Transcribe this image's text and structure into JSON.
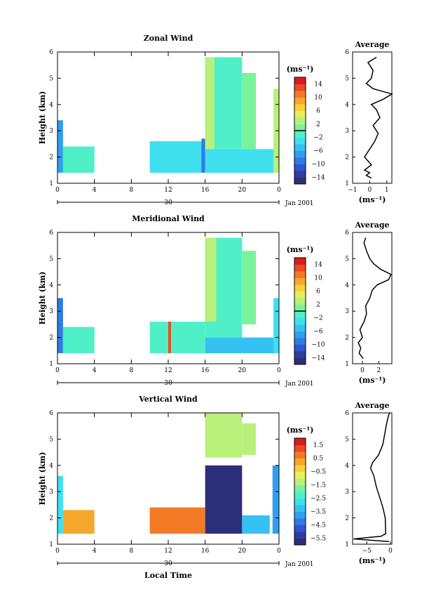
{
  "chart_data": [
    {
      "type": "heatmap",
      "title": "Zonal Wind",
      "ylabel": "Height (km)",
      "xlabel": "",
      "ylim": [
        1,
        6
      ],
      "yticks": [
        "1",
        "2",
        "3",
        "4",
        "5",
        "6"
      ],
      "xticks": [
        "0",
        "4",
        "8",
        "12",
        "16",
        "20",
        "0"
      ],
      "date_day": "30",
      "date_label": "Jan 2001",
      "colorbar": {
        "unit": "(ms⁻¹)",
        "range": [
          -16,
          16
        ],
        "ticks": [
          14,
          10,
          6,
          2,
          -2,
          -6,
          -10,
          -14
        ],
        "tick_labels": [
          "14",
          "10",
          "6",
          "2",
          "−2",
          "−6",
          "−10",
          "−14"
        ],
        "zero_line": 0
      },
      "data_blocks": [
        {
          "t": [
            0,
            0.6
          ],
          "h": [
            1.4,
            3.4
          ],
          "v": -7
        },
        {
          "t": [
            0.6,
            4
          ],
          "h": [
            1.4,
            2.4
          ],
          "v": -2
        },
        {
          "t": [
            10,
            16
          ],
          "h": [
            1.4,
            2.6
          ],
          "v": -3
        },
        {
          "t": [
            15.6,
            16
          ],
          "h": [
            1.4,
            2.7
          ],
          "v": -9
        },
        {
          "t": [
            16,
            24
          ],
          "h": [
            1.4,
            2.3
          ],
          "v": -4
        },
        {
          "t": [
            16,
            20
          ],
          "h": [
            2.3,
            5.8
          ],
          "v": -1
        },
        {
          "t": [
            16,
            17
          ],
          "h": [
            2.3,
            5.8
          ],
          "v": 2
        },
        {
          "t": [
            20,
            21.5
          ],
          "h": [
            2.3,
            5.2
          ],
          "v": 1
        },
        {
          "t": [
            23.4,
            24
          ],
          "h": [
            1.4,
            4.6
          ],
          "v": 2
        }
      ],
      "profile": {
        "title": "Average",
        "xlabel": "(ms⁻¹)",
        "xlim": [
          -1,
          1.3
        ],
        "xticks": [
          "−1",
          "0",
          "1"
        ],
        "yticks": [
          "1",
          "2",
          "3",
          "4",
          "5",
          "6"
        ],
        "ylim": [
          1,
          6
        ],
        "h": [
          1.2,
          1.3,
          1.4,
          1.5,
          1.7,
          2.0,
          2.3,
          2.6,
          2.9,
          3.2,
          3.5,
          3.8,
          4.0,
          4.2,
          4.4,
          4.6,
          4.8,
          5.0,
          5.3,
          5.6,
          5.8
        ],
        "v": [
          0.1,
          -0.2,
          0.0,
          -0.3,
          0.1,
          -0.3,
          0.0,
          0.3,
          0.5,
          0.2,
          0.6,
          0.4,
          0.1,
          0.8,
          1.3,
          0.2,
          -0.2,
          0.1,
          0.2,
          -0.1,
          0.4
        ]
      }
    },
    {
      "type": "heatmap",
      "title": "Meridional Wind",
      "ylabel": "Height (km)",
      "xlabel": "",
      "ylim": [
        1,
        6
      ],
      "yticks": [
        "1",
        "2",
        "3",
        "4",
        "5",
        "6"
      ],
      "xticks": [
        "0",
        "4",
        "8",
        "12",
        "16",
        "20",
        "0"
      ],
      "date_day": "30",
      "date_label": "Jan 2001",
      "colorbar": {
        "unit": "(ms⁻¹)",
        "range": [
          -16,
          16
        ],
        "ticks": [
          14,
          10,
          6,
          2,
          -2,
          -6,
          -10,
          -14
        ],
        "tick_labels": [
          "14",
          "10",
          "6",
          "2",
          "−2",
          "−6",
          "−10",
          "−14"
        ],
        "zero_line": 0
      },
      "data_blocks": [
        {
          "t": [
            0,
            0.6
          ],
          "h": [
            1.4,
            3.5
          ],
          "v": -9
        },
        {
          "t": [
            0.6,
            4
          ],
          "h": [
            1.4,
            2.4
          ],
          "v": -2
        },
        {
          "t": [
            10,
            16
          ],
          "h": [
            1.4,
            2.6
          ],
          "v": -2
        },
        {
          "t": [
            12,
            12.3
          ],
          "h": [
            1.4,
            2.6
          ],
          "v": 12
        },
        {
          "t": [
            16,
            24
          ],
          "h": [
            1.4,
            2.0
          ],
          "v": -5
        },
        {
          "t": [
            16,
            20
          ],
          "h": [
            2.0,
            5.8
          ],
          "v": -1
        },
        {
          "t": [
            16,
            17.2
          ],
          "h": [
            2.6,
            5.8
          ],
          "v": 2
        },
        {
          "t": [
            20,
            21.5
          ],
          "h": [
            2.5,
            5.3
          ],
          "v": 1
        },
        {
          "t": [
            23.4,
            24
          ],
          "h": [
            1.4,
            3.5
          ],
          "v": -3
        }
      ],
      "profile": {
        "title": "Average",
        "xlabel": "(ms⁻¹)",
        "xlim": [
          -1.2,
          3.6
        ],
        "xticks": [
          "0",
          "2"
        ],
        "yticks": [
          "1",
          "2",
          "3",
          "4",
          "5",
          "6"
        ],
        "ylim": [
          1,
          6
        ],
        "h": [
          1.2,
          1.4,
          1.6,
          1.8,
          2.0,
          2.3,
          2.6,
          2.9,
          3.2,
          3.5,
          3.8,
          4.0,
          4.2,
          4.4,
          4.6,
          4.8,
          5.0,
          5.3,
          5.6,
          5.8
        ],
        "v": [
          0.1,
          -0.4,
          -0.2,
          -0.5,
          0.0,
          -0.3,
          0.2,
          0.5,
          0.4,
          0.9,
          1.2,
          1.8,
          3.2,
          3.5,
          2.2,
          1.4,
          0.9,
          0.5,
          0.2,
          0.4
        ]
      }
    },
    {
      "type": "heatmap",
      "title": "Vertical Wind",
      "ylabel": "Height (km)",
      "xlabel": "Local Time",
      "ylim": [
        1,
        6
      ],
      "yticks": [
        "1",
        "2",
        "3",
        "4",
        "5",
        "6"
      ],
      "xticks": [
        "0",
        "4",
        "8",
        "12",
        "16",
        "20",
        "0"
      ],
      "date_day": "30",
      "date_label": "Jan 2001",
      "colorbar": {
        "unit": "(ms⁻¹)",
        "range": [
          -6,
          2
        ],
        "ticks": [
          1.5,
          0.5,
          -0.5,
          -1.5,
          -2.5,
          -3.5,
          -4.5,
          -5.5
        ],
        "tick_labels": [
          "1.5",
          "0.5",
          "−0.5",
          "−1.5",
          "−2.5",
          "−3.5",
          "−4.5",
          "−5.5"
        ],
        "zero_line": null
      },
      "data_blocks": [
        {
          "t": [
            0,
            0.6
          ],
          "h": [
            1.4,
            3.6
          ],
          "v": -3
        },
        {
          "t": [
            0.6,
            4
          ],
          "h": [
            1.4,
            2.3
          ],
          "v": 0.4
        },
        {
          "t": [
            10,
            16
          ],
          "h": [
            1.4,
            2.4
          ],
          "v": 0.5
        },
        {
          "t": [
            16,
            20
          ],
          "h": [
            1.4,
            4.0
          ],
          "v": -5.6
        },
        {
          "t": [
            16,
            20
          ],
          "h": [
            4.3,
            6.0
          ],
          "v": -1.2
        },
        {
          "t": [
            20,
            21.5
          ],
          "h": [
            4.4,
            5.6
          ],
          "v": -1.4
        },
        {
          "t": [
            20,
            23
          ],
          "h": [
            1.4,
            2.1
          ],
          "v": -3.2
        },
        {
          "t": [
            23.3,
            24
          ],
          "h": [
            1.4,
            4.0
          ],
          "v": -4.0
        }
      ],
      "profile": {
        "title": "Average",
        "xlabel": "(ms⁻¹)",
        "xlim": [
          -8,
          0.3
        ],
        "xticks": [
          "−5",
          "0"
        ],
        "yticks": [
          "1",
          "2",
          "3",
          "4",
          "5",
          "6"
        ],
        "ylim": [
          1,
          6
        ],
        "h": [
          1.1,
          1.2,
          1.3,
          1.4,
          2.0,
          2.4,
          2.8,
          3.2,
          3.6,
          3.9,
          4.1,
          4.4,
          4.8,
          5.2,
          5.6,
          5.9,
          6.0
        ],
        "v": [
          -0.3,
          -7.8,
          -2.0,
          -1.0,
          -1.1,
          -1.6,
          -2.3,
          -3.0,
          -3.5,
          -4.2,
          -3.8,
          -2.5,
          -1.6,
          -1.2,
          -0.8,
          -0.4,
          -0.2
        ]
      }
    }
  ]
}
